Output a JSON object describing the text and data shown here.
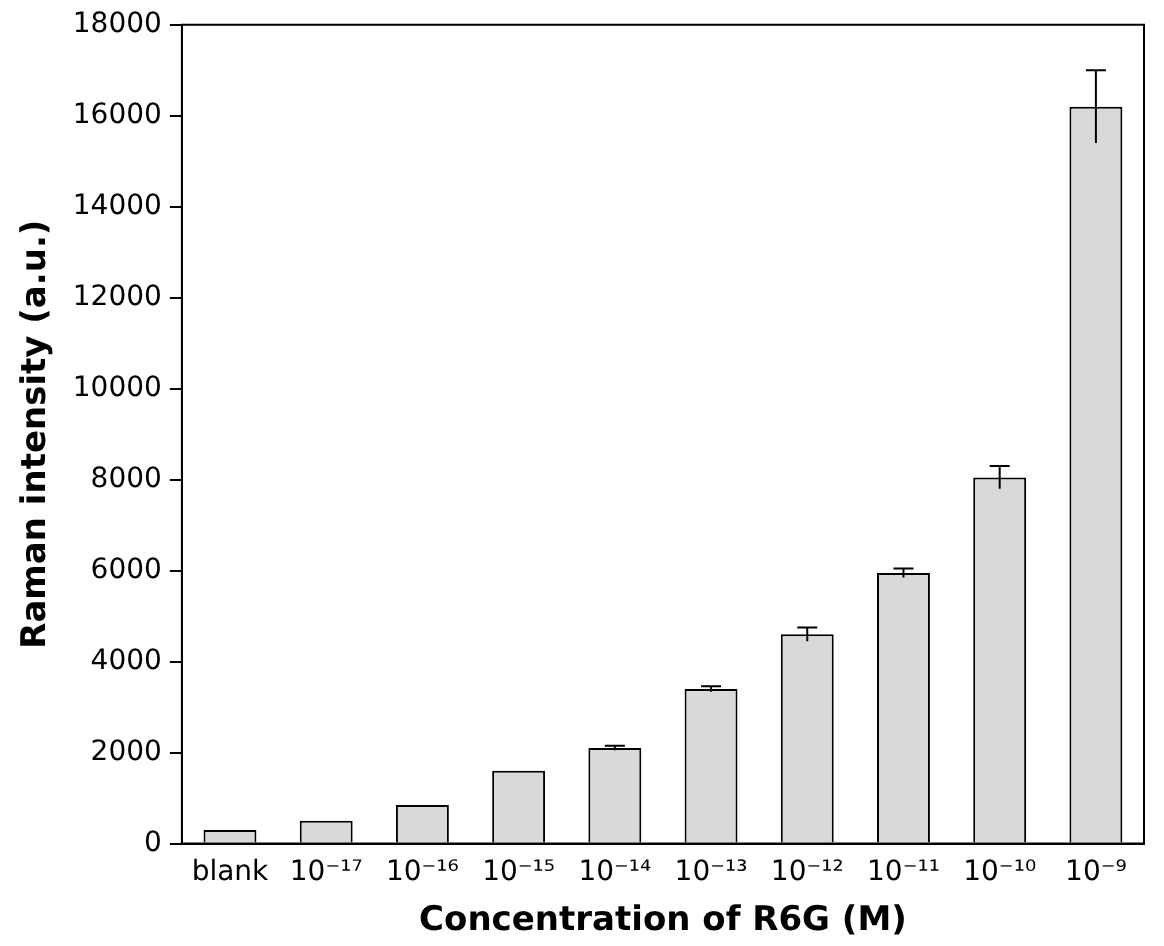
{
  "chart_data": {
    "type": "bar",
    "xlabel": "Concentration of R6G (M)",
    "ylabel": "Raman intensity (a.u.)",
    "categories": [
      "blank",
      "10⁻¹⁷",
      "10⁻¹⁶",
      "10⁻¹⁵",
      "10⁻¹⁴",
      "10⁻¹³",
      "10⁻¹²",
      "10⁻¹¹",
      "10⁻¹⁰",
      "10⁻⁹"
    ],
    "values": [
      300,
      500,
      850,
      1600,
      2100,
      3400,
      4600,
      5950,
      8050,
      16200
    ],
    "errors": [
      null,
      null,
      null,
      null,
      50,
      60,
      150,
      100,
      250,
      800
    ],
    "color": "#d9d9d9",
    "ylim": [
      0,
      18000
    ],
    "yticks": [
      0,
      2000,
      4000,
      6000,
      8000,
      10000,
      12000,
      14000,
      16000,
      18000
    ],
    "grid": false,
    "legend": false
  }
}
